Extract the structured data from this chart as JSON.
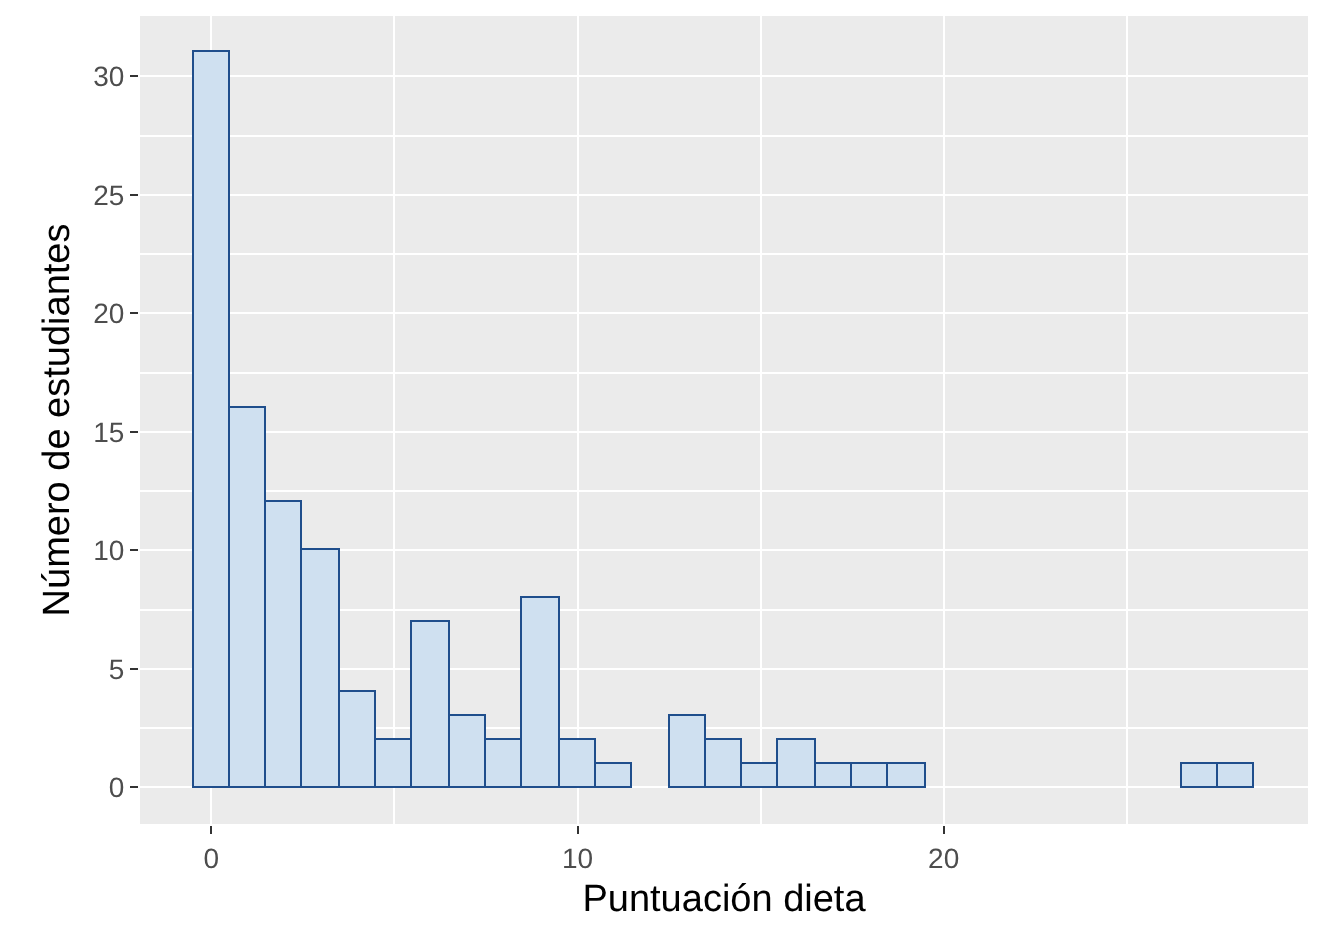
{
  "chart_data": {
    "type": "histogram",
    "xlabel": "Puntuación dieta",
    "ylabel": "Número de estudiantes",
    "bins": [
      -0.5,
      0.5,
      1.5,
      2.5,
      3.5,
      4.5,
      5.5,
      6.5,
      7.5,
      8.5,
      9.5,
      10.5,
      11.5,
      12.5,
      13.5,
      14.5,
      15.5,
      16.5,
      17.5,
      18.5,
      19.5,
      20.5,
      21.5,
      22.5,
      23.5,
      24.5,
      25.5,
      26.5,
      27.5,
      28.5
    ],
    "values": [
      31,
      16,
      12,
      10,
      4,
      2,
      7,
      3,
      2,
      8,
      2,
      1,
      0,
      3,
      2,
      1,
      2,
      1,
      1,
      1,
      0,
      0,
      0,
      0,
      0,
      0,
      0,
      1,
      1
    ],
    "color": "#cfe0f0",
    "xlim": [
      -1.95,
      29.95
    ],
    "xticks": [
      0,
      10,
      20
    ],
    "ylim": [
      -1.55,
      32.55
    ],
    "yticks": [
      0,
      5,
      10,
      15,
      20,
      25,
      30
    ],
    "grid": true
  }
}
